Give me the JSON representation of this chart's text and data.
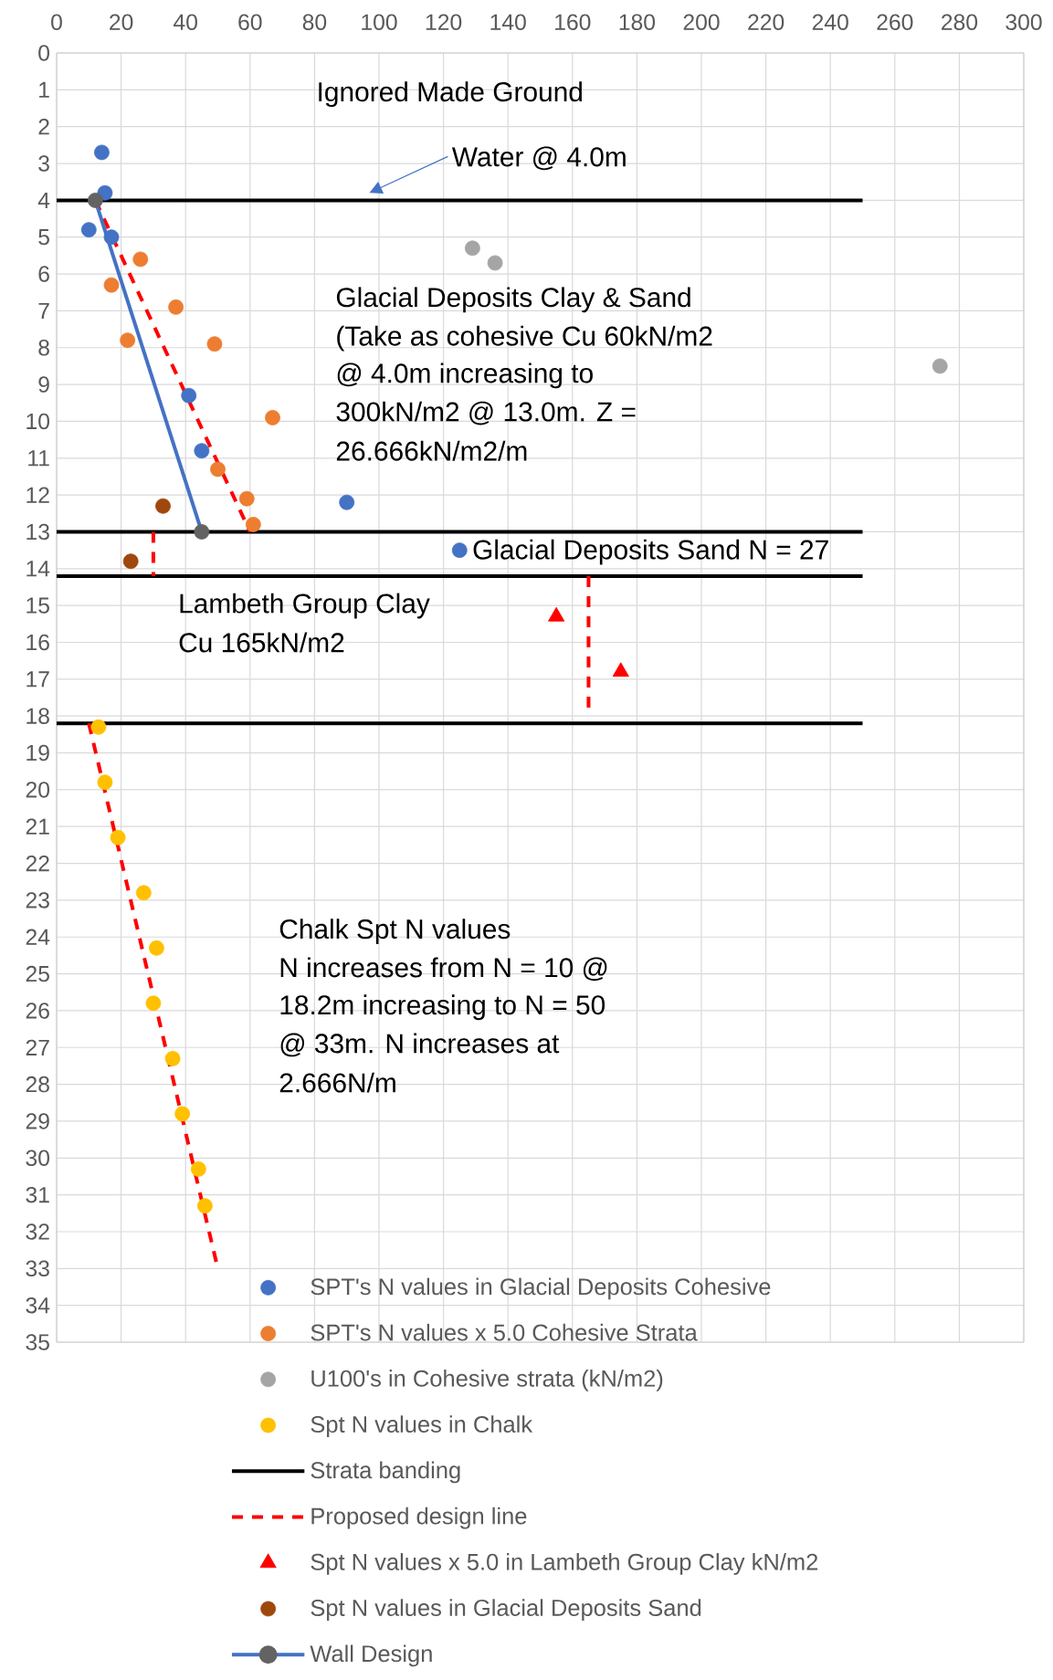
{
  "chart_data": {
    "type": "scatter",
    "xlim": [
      0,
      300
    ],
    "xticks": [
      0,
      20,
      40,
      60,
      80,
      100,
      120,
      140,
      160,
      180,
      200,
      220,
      240,
      260,
      280,
      300
    ],
    "ylim": [
      35,
      0
    ],
    "yticks": [
      0,
      1,
      2,
      3,
      4,
      5,
      6,
      7,
      8,
      9,
      10,
      11,
      12,
      13,
      14,
      15,
      16,
      17,
      18,
      19,
      20,
      21,
      22,
      23,
      24,
      25,
      26,
      27,
      28,
      29,
      30,
      31,
      32,
      33,
      34,
      35
    ],
    "grid": true,
    "legend": "bottom",
    "annotations": [
      "Ignored Made Ground",
      "Water @ 4.0m",
      "Glacial Deposits Clay & Sand",
      "(Take as cohesive Cu 60kN/m2",
      "@ 4.0m increasing to",
      "300kN/m2 @ 13.0m. Z =",
      "26.666kN/m2/m",
      "Glacial Deposits Sand N = 27",
      "Lambeth Group Clay",
      "Cu 165kN/m2",
      "Chalk Spt N values",
      "N increases from N = 10 @",
      "18.2m increasing to N = 50",
      "@ 33m. N increases at",
      "2.666N/m"
    ],
    "series": [
      {
        "name": "SPT's N values in Glacial Deposits Cohesive",
        "marker": "circle",
        "color": "#4472c4",
        "x": [
          14,
          15,
          10,
          17,
          41,
          45,
          90,
          125
        ],
        "values": [
          2.7,
          3.8,
          4.8,
          5.0,
          9.3,
          10.8,
          12.2,
          13.5
        ]
      },
      {
        "name": "SPT's N values x 5.0 Cohesive Strata",
        "marker": "circle",
        "color": "#ed7d31",
        "x": [
          26,
          17,
          22,
          37,
          49,
          67,
          50,
          59,
          61
        ],
        "values": [
          5.6,
          6.3,
          7.8,
          6.9,
          7.9,
          9.9,
          11.3,
          12.1,
          12.8
        ]
      },
      {
        "name": "U100's in Cohesive strata (kN/m2)",
        "marker": "circle",
        "color": "#a5a5a5",
        "x": [
          129,
          136,
          274
        ],
        "values": [
          5.3,
          5.7,
          8.5
        ]
      },
      {
        "name": "Spt N values in Chalk",
        "marker": "circle",
        "color": "#ffc000",
        "x": [
          13,
          15,
          19,
          27,
          31,
          30,
          36,
          39,
          44,
          46
        ],
        "values": [
          18.3,
          19.8,
          21.3,
          22.8,
          24.3,
          25.8,
          27.3,
          28.8,
          30.3,
          31.3
        ]
      },
      {
        "name": "Strata banding",
        "type": "line",
        "marker": "none",
        "line_style": "solid",
        "color": "#000000",
        "x": [
          0,
          250
        ],
        "values": [
          4,
          4
        ]
      },
      {
        "type": "line",
        "marker": "none",
        "line_style": "solid",
        "color": "#000000",
        "x": [
          0,
          250
        ],
        "values": [
          13,
          13
        ]
      },
      {
        "type": "line",
        "marker": "none",
        "line_style": "solid",
        "color": "#000000",
        "x": [
          0,
          250
        ],
        "values": [
          14.2,
          14.2
        ]
      },
      {
        "type": "line",
        "marker": "none",
        "line_style": "solid",
        "color": "#000000",
        "x": [
          0,
          250
        ],
        "values": [
          18.2,
          18.2
        ]
      },
      {
        "name": "Proposed design line",
        "type": "line",
        "marker": "none",
        "line_style": "dashed",
        "color": "#ff0000",
        "x": [
          12,
          60,
          null,
          30,
          30,
          null,
          165,
          165,
          null,
          10,
          50
        ],
        "values": [
          4,
          13,
          null,
          13,
          14.2,
          null,
          14.2,
          18,
          null,
          18.2,
          33
        ]
      },
      {
        "name": "Spt N values x 5.0 in Lambeth Group Clay kN/m2",
        "marker": "triangle",
        "color": "#ff0000",
        "x": [
          155,
          175
        ],
        "values": [
          15.3,
          16.8
        ]
      },
      {
        "name": "Spt N values in Glacial Deposits Sand",
        "marker": "circle",
        "color": "#9e480e",
        "x": [
          33,
          23
        ],
        "values": [
          12.3,
          13.8
        ]
      },
      {
        "name": "Wall Design",
        "type": "line",
        "marker": "circle",
        "line_style": "solid",
        "color": "#4472c4",
        "colors": [
          "#636363",
          "#636363"
        ],
        "x": [
          12,
          45
        ],
        "values": [
          4,
          13
        ]
      }
    ]
  }
}
